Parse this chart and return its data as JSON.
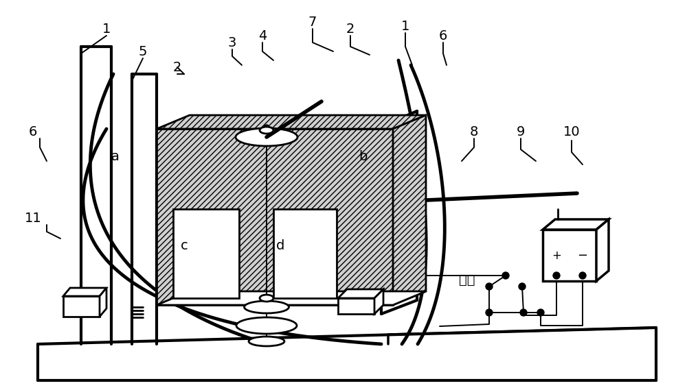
{
  "bg": "#ffffff",
  "lc": "#000000",
  "labels": [
    [
      "1",
      155,
      42
    ],
    [
      "5",
      208,
      75
    ],
    [
      "2",
      258,
      98
    ],
    [
      "3",
      338,
      62
    ],
    [
      "4",
      382,
      52
    ],
    [
      "7",
      455,
      32
    ],
    [
      "2",
      510,
      42
    ],
    [
      "1",
      590,
      38
    ],
    [
      "6",
      645,
      52
    ],
    [
      "6",
      48,
      192
    ],
    [
      "8",
      690,
      192
    ],
    [
      "9",
      758,
      192
    ],
    [
      "10",
      832,
      192
    ],
    [
      "11",
      48,
      318
    ],
    [
      "a",
      168,
      228
    ],
    [
      "b",
      528,
      228
    ],
    [
      "c",
      268,
      358
    ],
    [
      "d",
      408,
      358
    ],
    [
      "开关",
      680,
      408
    ]
  ]
}
